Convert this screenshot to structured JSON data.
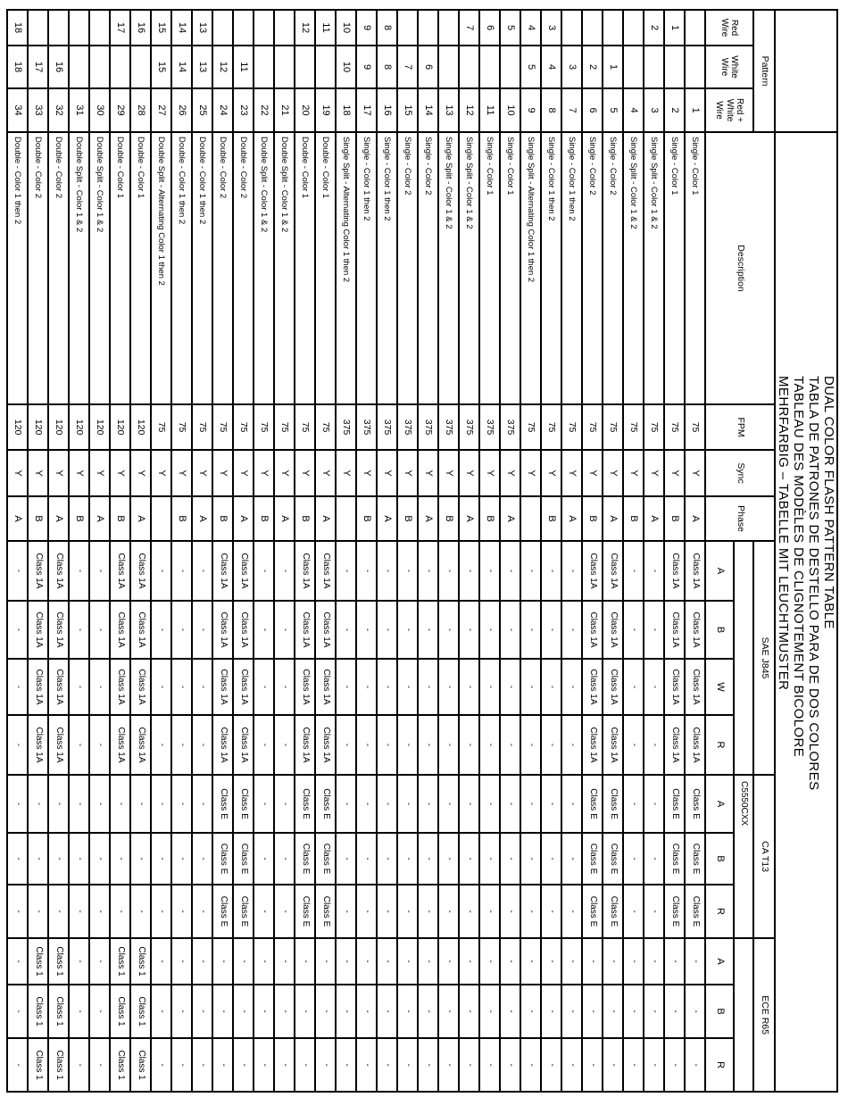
{
  "title": {
    "lines": [
      "DUAL COLOR FLASH PATTERN TABLE",
      "TABLA DE PATRONES DE DESTELLO PARA DE DOS COLORES",
      "TABLEAU DES MODÈLES DE CLIGNOTEMENT BICOLORE",
      "MEHRFARBIG – TABELLE MIT LEUCHTMUSTER"
    ]
  },
  "header": {
    "pattern_group": "Pattern",
    "columns": {
      "red": "Red Wire",
      "white": "White Wire",
      "red_white": "Red + White Wire",
      "description": "Description",
      "fpm": "FPM",
      "sync": "Sync",
      "phase": "Phase"
    },
    "cert_groups": [
      {
        "label": "SAE J845",
        "subgroup": "",
        "letters": [
          "A",
          "B",
          "W",
          "R"
        ]
      },
      {
        "label": "CA T13",
        "subgroup": "C5550CXX",
        "letters": [
          "A",
          "B",
          "R"
        ]
      },
      {
        "label": "ECE R65",
        "subgroup": "",
        "letters": [
          "A",
          "B",
          "R"
        ]
      }
    ]
  },
  "rows": [
    {
      "red": "",
      "white": "",
      "rw": "1",
      "desc": "Single - Color 1",
      "fpm": "75",
      "sync": "Y",
      "phase": "A",
      "certs": [
        "Class 1A",
        "Class 1A",
        "Class 1A",
        "Class 1A",
        "Class E",
        "Class E",
        "Class E",
        "-",
        "-",
        "-"
      ]
    },
    {
      "red": "1",
      "white": "",
      "rw": "2",
      "desc": "Single - Color 1",
      "fpm": "75",
      "sync": "Y",
      "phase": "B",
      "certs": [
        "Class 1A",
        "Class 1A",
        "Class 1A",
        "Class 1A",
        "Class E",
        "Class E",
        "Class E",
        "-",
        "-",
        "-"
      ]
    },
    {
      "red": "2",
      "white": "",
      "rw": "3",
      "desc": "Single Split - Color 1 & 2",
      "fpm": "75",
      "sync": "Y",
      "phase": "A",
      "certs": [
        "-",
        "-",
        "-",
        "-",
        "-",
        "-",
        "-",
        "-",
        "-",
        "-"
      ]
    },
    {
      "red": "",
      "white": "",
      "rw": "4",
      "desc": "Single Split - Color 1 & 2",
      "fpm": "75",
      "sync": "Y",
      "phase": "B",
      "certs": [
        "-",
        "-",
        "-",
        "-",
        "-",
        "-",
        "-",
        "-",
        "-",
        "-"
      ]
    },
    {
      "red": "",
      "white": "1",
      "rw": "5",
      "desc": "Single - Color 2",
      "fpm": "75",
      "sync": "Y",
      "phase": "A",
      "certs": [
        "Class 1A",
        "Class 1A",
        "Class 1A",
        "Class 1A",
        "Class E",
        "Class E",
        "Class E",
        "-",
        "-",
        "-"
      ]
    },
    {
      "red": "",
      "white": "2",
      "rw": "6",
      "desc": "Single - Color 2",
      "fpm": "75",
      "sync": "Y",
      "phase": "B",
      "certs": [
        "Class 1A",
        "Class 1A",
        "Class 1A",
        "Class 1A",
        "Class E",
        "Class E",
        "Class E",
        "-",
        "-",
        "-"
      ]
    },
    {
      "red": "",
      "white": "3",
      "rw": "7",
      "desc": "Single - Color 1 then 2",
      "fpm": "75",
      "sync": "Y",
      "phase": "A",
      "certs": [
        "-",
        "-",
        "-",
        "-",
        "-",
        "-",
        "-",
        "-",
        "-",
        "-"
      ]
    },
    {
      "red": "3",
      "white": "4",
      "rw": "8",
      "desc": "Single - Color 1 then 2",
      "fpm": "75",
      "sync": "Y",
      "phase": "B",
      "certs": [
        "-",
        "-",
        "-",
        "-",
        "-",
        "-",
        "-",
        "-",
        "-",
        "-"
      ]
    },
    {
      "red": "4",
      "white": "5",
      "rw": "9",
      "desc": "Single Split - Alternating Color 1 then 2",
      "fpm": "75",
      "sync": "Y",
      "phase": "",
      "certs": [
        "-",
        "-",
        "-",
        "-",
        "-",
        "-",
        "-",
        "-",
        "-",
        "-"
      ]
    },
    {
      "red": "5",
      "white": "",
      "rw": "10",
      "desc": "Single - Color 1",
      "fpm": "375",
      "sync": "Y",
      "phase": "A",
      "certs": [
        "-",
        "-",
        "-",
        "-",
        "-",
        "-",
        "-",
        "-",
        "-",
        "-"
      ]
    },
    {
      "red": "6",
      "white": "",
      "rw": "11",
      "desc": "Single - Color 1",
      "fpm": "375",
      "sync": "Y",
      "phase": "B",
      "certs": [
        "-",
        "-",
        "-",
        "-",
        "-",
        "-",
        "-",
        "-",
        "-",
        "-"
      ]
    },
    {
      "red": "7",
      "white": "",
      "rw": "12",
      "desc": "Single Split - Color 1 & 2",
      "fpm": "375",
      "sync": "Y",
      "phase": "A",
      "certs": [
        "-",
        "-",
        "-",
        "-",
        "-",
        "-",
        "-",
        "-",
        "-",
        "-"
      ]
    },
    {
      "red": "",
      "white": "",
      "rw": "13",
      "desc": "Single Split - Color 1 & 2",
      "fpm": "375",
      "sync": "Y",
      "phase": "B",
      "certs": [
        "-",
        "-",
        "-",
        "-",
        "-",
        "-",
        "-",
        "-",
        "-",
        "-"
      ]
    },
    {
      "red": "",
      "white": "6",
      "rw": "14",
      "desc": "Single - Color 2",
      "fpm": "375",
      "sync": "Y",
      "phase": "A",
      "certs": [
        "-",
        "-",
        "-",
        "-",
        "-",
        "-",
        "-",
        "-",
        "-",
        "-"
      ]
    },
    {
      "red": "",
      "white": "7",
      "rw": "15",
      "desc": "Single - Color 2",
      "fpm": "375",
      "sync": "Y",
      "phase": "B",
      "certs": [
        "-",
        "-",
        "-",
        "-",
        "-",
        "-",
        "-",
        "-",
        "-",
        "-"
      ]
    },
    {
      "red": "8",
      "white": "8",
      "rw": "16",
      "desc": "Single - Color 1 then 2",
      "fpm": "375",
      "sync": "Y",
      "phase": "A",
      "certs": [
        "-",
        "-",
        "-",
        "-",
        "-",
        "-",
        "-",
        "-",
        "-",
        "-"
      ]
    },
    {
      "red": "9",
      "white": "9",
      "rw": "17",
      "desc": "Single - Color 1 then 2",
      "fpm": "375",
      "sync": "Y",
      "phase": "B",
      "certs": [
        "-",
        "-",
        "-",
        "-",
        "-",
        "-",
        "-",
        "-",
        "-",
        "-"
      ]
    },
    {
      "red": "10",
      "white": "10",
      "rw": "18",
      "desc": "Single Split - Alternating Color 1 then 2",
      "fpm": "375",
      "sync": "Y",
      "phase": "",
      "certs": [
        "-",
        "-",
        "-",
        "-",
        "-",
        "-",
        "-",
        "-",
        "-",
        "-"
      ]
    },
    {
      "red": "11",
      "white": "",
      "rw": "19",
      "desc": "Double - Color 1",
      "fpm": "75",
      "sync": "Y",
      "phase": "A",
      "certs": [
        "Class 1A",
        "Class 1A",
        "Class 1A",
        "Class 1A",
        "Class E",
        "Class E",
        "Class E",
        "-",
        "-",
        "-"
      ]
    },
    {
      "red": "12",
      "white": "",
      "rw": "20",
      "desc": "Double - Color 1",
      "fpm": "75",
      "sync": "Y",
      "phase": "B",
      "certs": [
        "Class 1A",
        "Class 1A",
        "Class 1A",
        "Class 1A",
        "Class E",
        "Class E",
        "Class E",
        "-",
        "-",
        "-"
      ]
    },
    {
      "red": "",
      "white": "",
      "rw": "21",
      "desc": "Double Split - Color 1 & 2",
      "fpm": "75",
      "sync": "Y",
      "phase": "A",
      "certs": [
        "-",
        "-",
        "-",
        "-",
        "-",
        "-",
        "-",
        "-",
        "-",
        "-"
      ]
    },
    {
      "red": "",
      "white": "",
      "rw": "22",
      "desc": "Double Split - Color 1 & 2",
      "fpm": "75",
      "sync": "Y",
      "phase": "B",
      "certs": [
        "-",
        "-",
        "-",
        "-",
        "-",
        "-",
        "-",
        "-",
        "-",
        "-"
      ]
    },
    {
      "red": "",
      "white": "11",
      "rw": "23",
      "desc": "Double - Color 2",
      "fpm": "75",
      "sync": "Y",
      "phase": "A",
      "certs": [
        "Class 1A",
        "Class 1A",
        "Class 1A",
        "Class 1A",
        "Class E",
        "Class E",
        "Class E",
        "-",
        "-",
        "-"
      ]
    },
    {
      "red": "",
      "white": "12",
      "rw": "24",
      "desc": "Double - Color 2",
      "fpm": "75",
      "sync": "Y",
      "phase": "B",
      "certs": [
        "Class 1A",
        "Class 1A",
        "Class 1A",
        "Class 1A",
        "Class E",
        "Class E",
        "Class E",
        "-",
        "-",
        "-"
      ]
    },
    {
      "red": "13",
      "white": "13",
      "rw": "25",
      "desc": "Double - Color 1 then 2",
      "fpm": "75",
      "sync": "Y",
      "phase": "A",
      "certs": [
        "-",
        "-",
        "-",
        "-",
        "-",
        "-",
        "-",
        "-",
        "-",
        "-"
      ]
    },
    {
      "red": "14",
      "white": "14",
      "rw": "26",
      "desc": "Double - Color 1 then 2",
      "fpm": "75",
      "sync": "Y",
      "phase": "B",
      "certs": [
        "-",
        "-",
        "-",
        "-",
        "-",
        "-",
        "-",
        "-",
        "-",
        "-"
      ]
    },
    {
      "red": "15",
      "white": "15",
      "rw": "27",
      "desc": "Double Split - Alternating Color 1 then 2",
      "fpm": "75",
      "sync": "Y",
      "phase": "",
      "certs": [
        "-",
        "-",
        "-",
        "-",
        "-",
        "-",
        "-",
        "-",
        "-",
        "-"
      ]
    },
    {
      "red": "16",
      "white": "",
      "rw": "28",
      "desc": "Double - Color 1",
      "fpm": "120",
      "sync": "Y",
      "phase": "A",
      "certs": [
        "Class 1A",
        "Class 1A",
        "Class 1A",
        "Class 1A",
        "-",
        "-",
        "-",
        "Class 1",
        "Class 1",
        "Class 1"
      ]
    },
    {
      "red": "17",
      "white": "",
      "rw": "29",
      "desc": "Double - Color 1",
      "fpm": "120",
      "sync": "Y",
      "phase": "B",
      "certs": [
        "Class 1A",
        "Class 1A",
        "Class 1A",
        "Class 1A",
        "-",
        "-",
        "-",
        "Class 1",
        "Class 1",
        "Class 1"
      ]
    },
    {
      "red": "",
      "white": "",
      "rw": "30",
      "desc": "Double Split - Color 1 & 2",
      "fpm": "120",
      "sync": "Y",
      "phase": "A",
      "certs": [
        "-",
        "-",
        "-",
        "-",
        "-",
        "-",
        "-",
        "-",
        "-",
        "-"
      ]
    },
    {
      "red": "",
      "white": "",
      "rw": "31",
      "desc": "Double Split - Color 1 & 2",
      "fpm": "120",
      "sync": "Y",
      "phase": "B",
      "certs": [
        "-",
        "-",
        "-",
        "-",
        "-",
        "-",
        "-",
        "-",
        "-",
        "-"
      ]
    },
    {
      "red": "",
      "white": "16",
      "rw": "32",
      "desc": "Double - Color 2",
      "fpm": "120",
      "sync": "Y",
      "phase": "A",
      "certs": [
        "Class 1A",
        "Class 1A",
        "Class 1A",
        "Class 1A",
        "-",
        "-",
        "-",
        "Class 1",
        "Class 1",
        "Class 1"
      ]
    },
    {
      "red": "",
      "white": "17",
      "rw": "33",
      "desc": "Double - Color 2",
      "fpm": "120",
      "sync": "Y",
      "phase": "B",
      "certs": [
        "Class 1A",
        "Class 1A",
        "Class 1A",
        "Class 1A",
        "-",
        "-",
        "-",
        "Class 1",
        "Class 1",
        "Class 1"
      ]
    },
    {
      "red": "18",
      "white": "18",
      "rw": "34",
      "desc": "Double - Color 1 then 2",
      "fpm": "120",
      "sync": "Y",
      "phase": "A",
      "certs": [
        "-",
        "-",
        "-",
        "-",
        "-",
        "-",
        "-",
        "-",
        "-",
        "-"
      ]
    }
  ]
}
